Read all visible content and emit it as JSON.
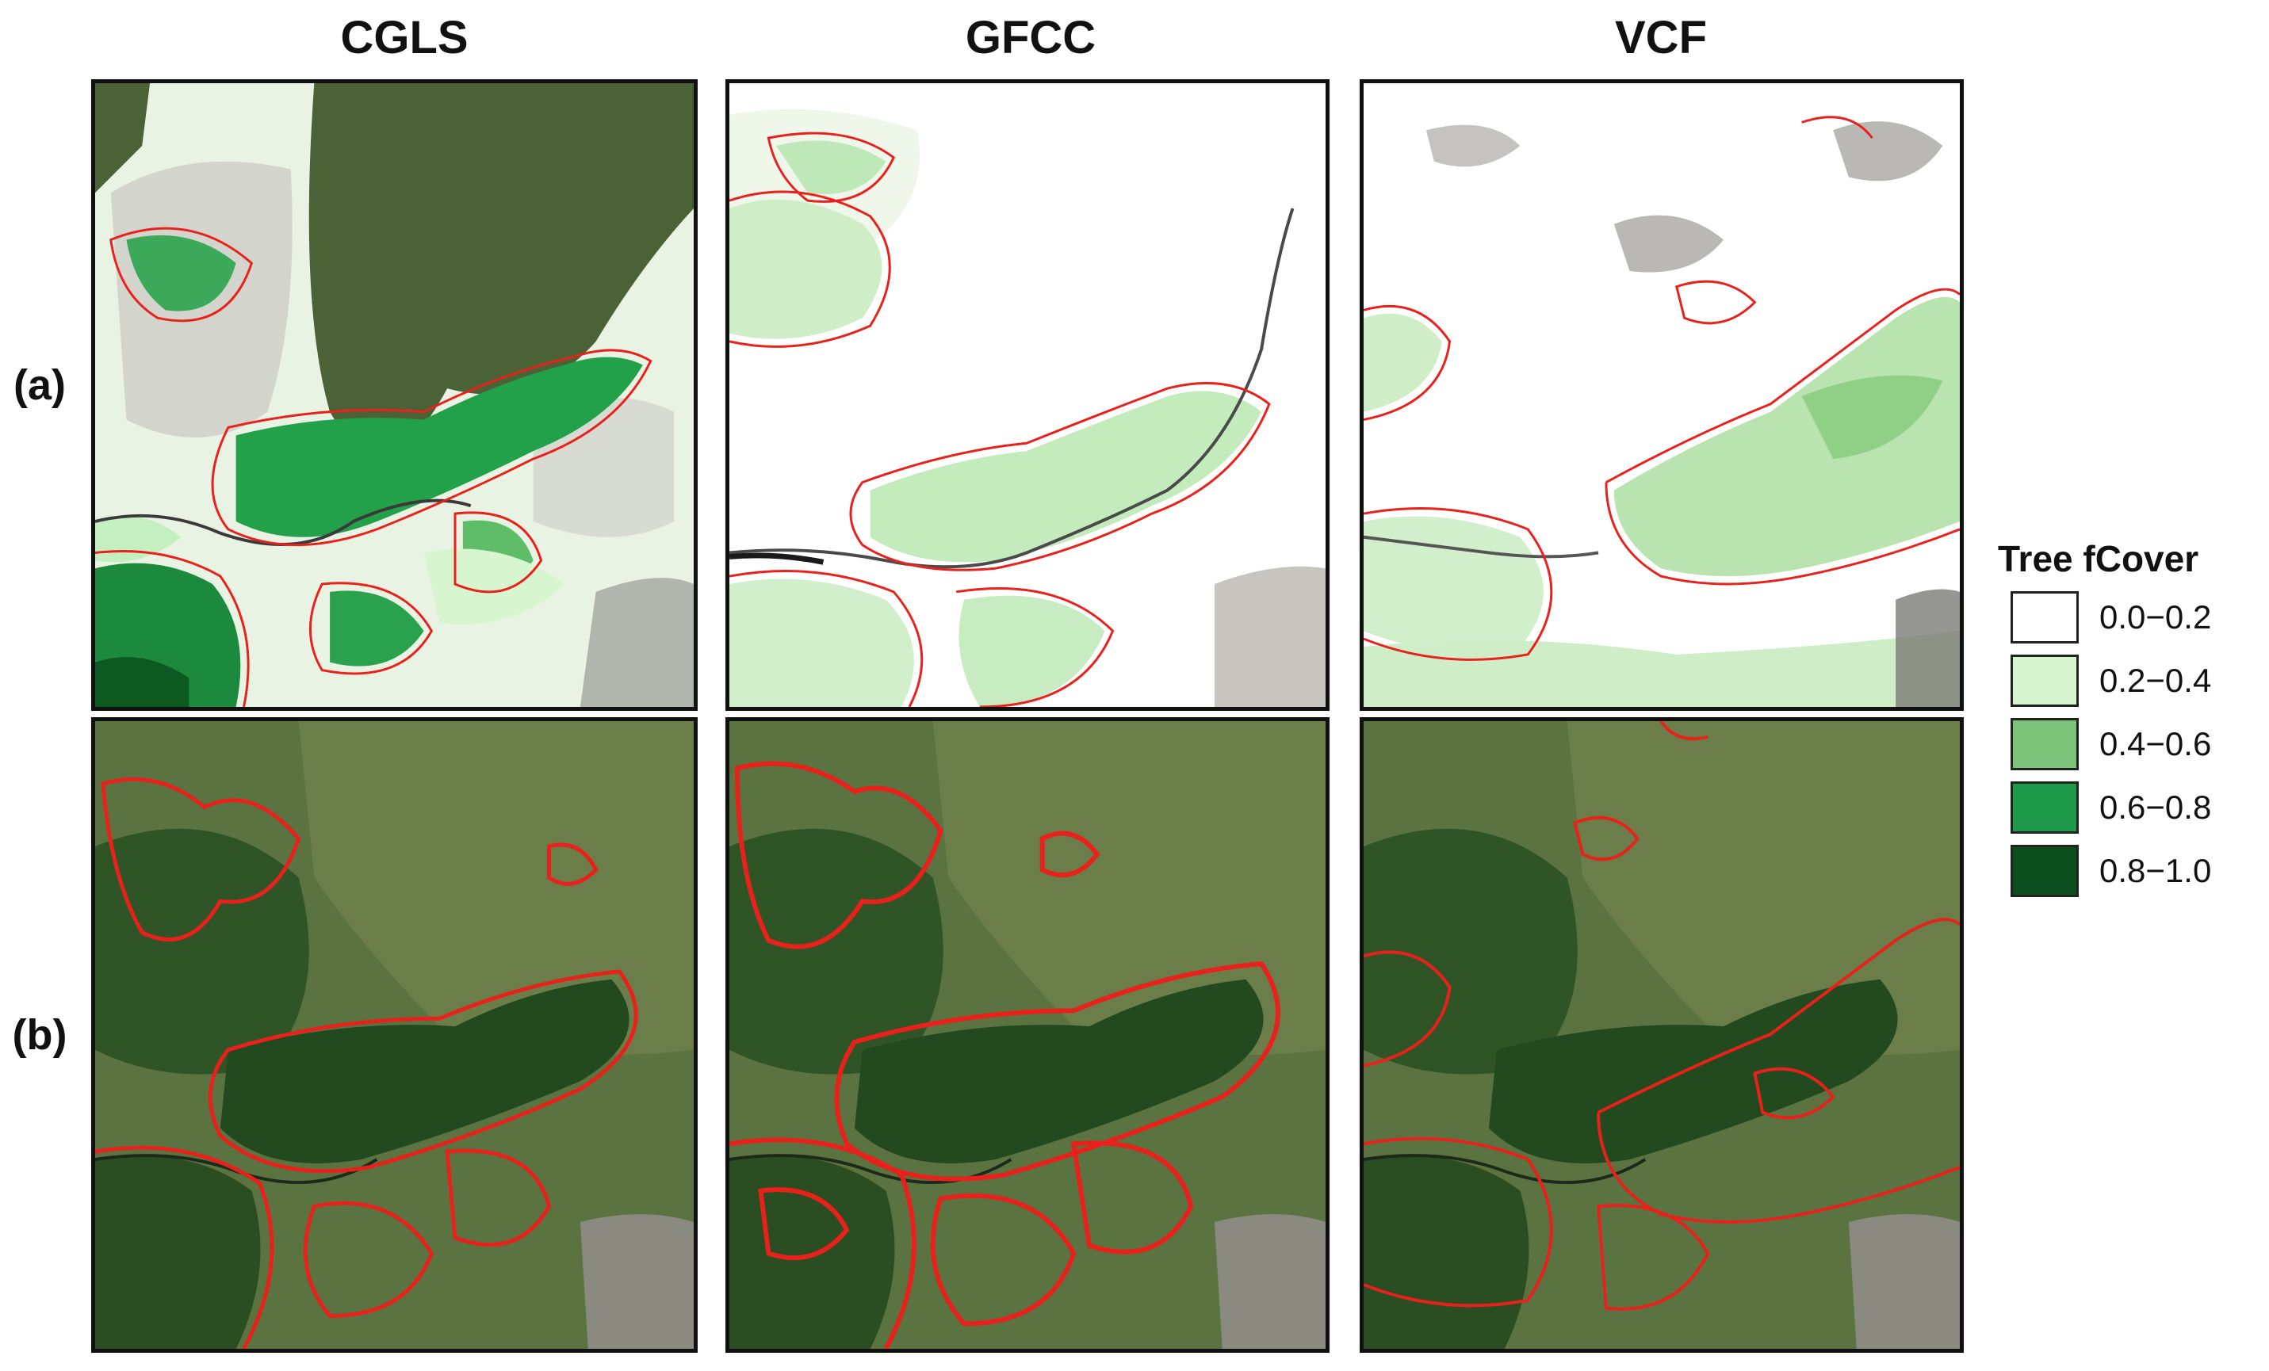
{
  "columns": [
    {
      "title": "CGLS"
    },
    {
      "title": "GFCC"
    },
    {
      "title": "VCF"
    }
  ],
  "rows": [
    {
      "label": "(a)",
      "content": "tree fCover map with red outline"
    },
    {
      "label": "(b)",
      "content": "satellite imagery with red outline"
    }
  ],
  "legend": {
    "title": "Tree fCover",
    "items": [
      {
        "label": "0.0−0.2",
        "color": "#ffffff"
      },
      {
        "label": "0.2−0.4",
        "color": "#d6f5cf"
      },
      {
        "label": "0.4−0.6",
        "color": "#7cc47a"
      },
      {
        "label": "0.6−0.8",
        "color": "#1f9a4a"
      },
      {
        "label": "0.8−1.0",
        "color": "#0b4f1f"
      }
    ]
  },
  "colors": {
    "outline": "#e8211c",
    "satellite_base": "#4f6a35",
    "forest_dark": "#1f4a1c"
  }
}
